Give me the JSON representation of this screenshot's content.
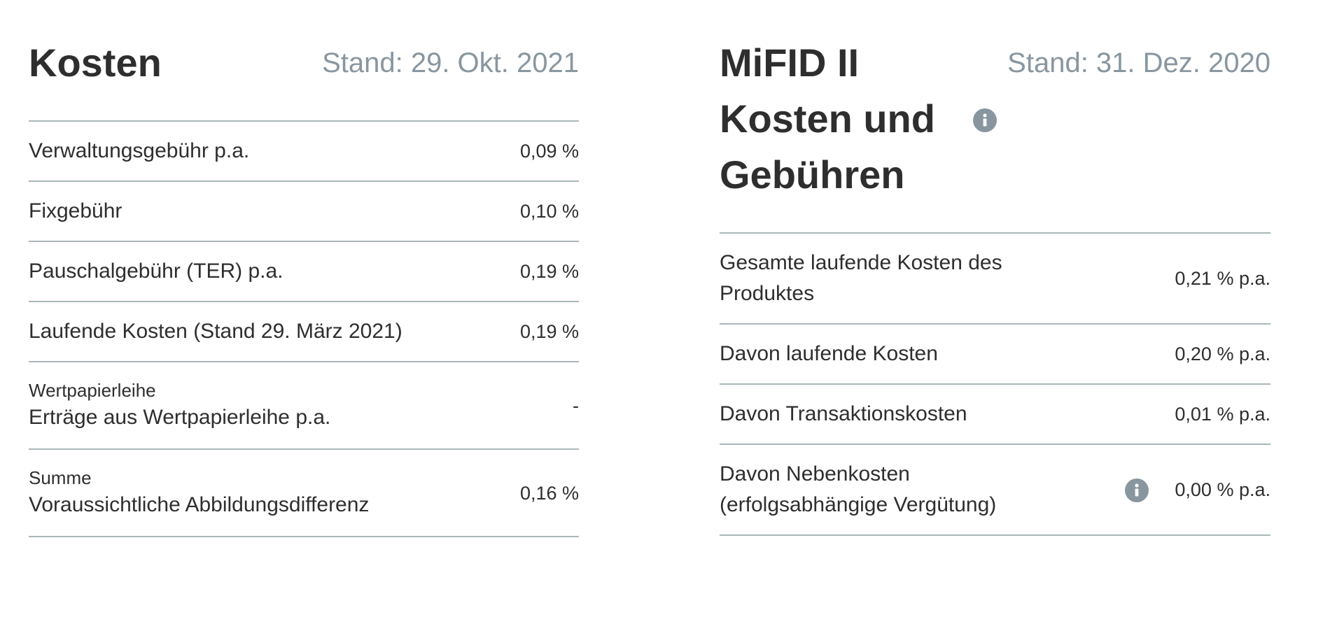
{
  "costs": {
    "title": "Kosten",
    "as_of": "Stand: 29. Okt. 2021",
    "rows": [
      {
        "label": "Verwaltungsgebühr p.a.",
        "value": "0,09 %"
      },
      {
        "label": "Fixgebühr",
        "value": "0,10 %"
      },
      {
        "label": "Pauschalgebühr (TER) p.a.",
        "value": "0,19 %"
      },
      {
        "label": "Laufende Kosten (Stand 29. März 2021)",
        "value": "0,19 %"
      },
      {
        "sublabel": "Wertpapierleihe",
        "label": "Erträge aus Wertpapierleihe p.a.",
        "value": "-"
      },
      {
        "sublabel": "Summe",
        "label": "Voraussichtliche Abbildungsdifferenz",
        "value": "0,16 %"
      }
    ]
  },
  "mifid": {
    "title": "MiFID II Kosten und Gebühren",
    "as_of": "Stand: 31. Dez. 2020",
    "title_icon": "info-icon",
    "rows": [
      {
        "label": "Gesamte laufende Kosten des Produktes",
        "value": "0,21 % p.a."
      },
      {
        "label": "Davon laufende Kosten",
        "value": "0,20 % p.a."
      },
      {
        "label": "Davon Transaktionskosten",
        "value": "0,01 % p.a."
      },
      {
        "label": "Davon Nebenkosten (erfolgsabhängige Vergütung)",
        "value": "0,00 % p.a.",
        "icon": "info-icon"
      }
    ]
  },
  "colors": {
    "text": "#2e2e2e",
    "muted": "#8896a0",
    "divider": "#aab7b9"
  }
}
